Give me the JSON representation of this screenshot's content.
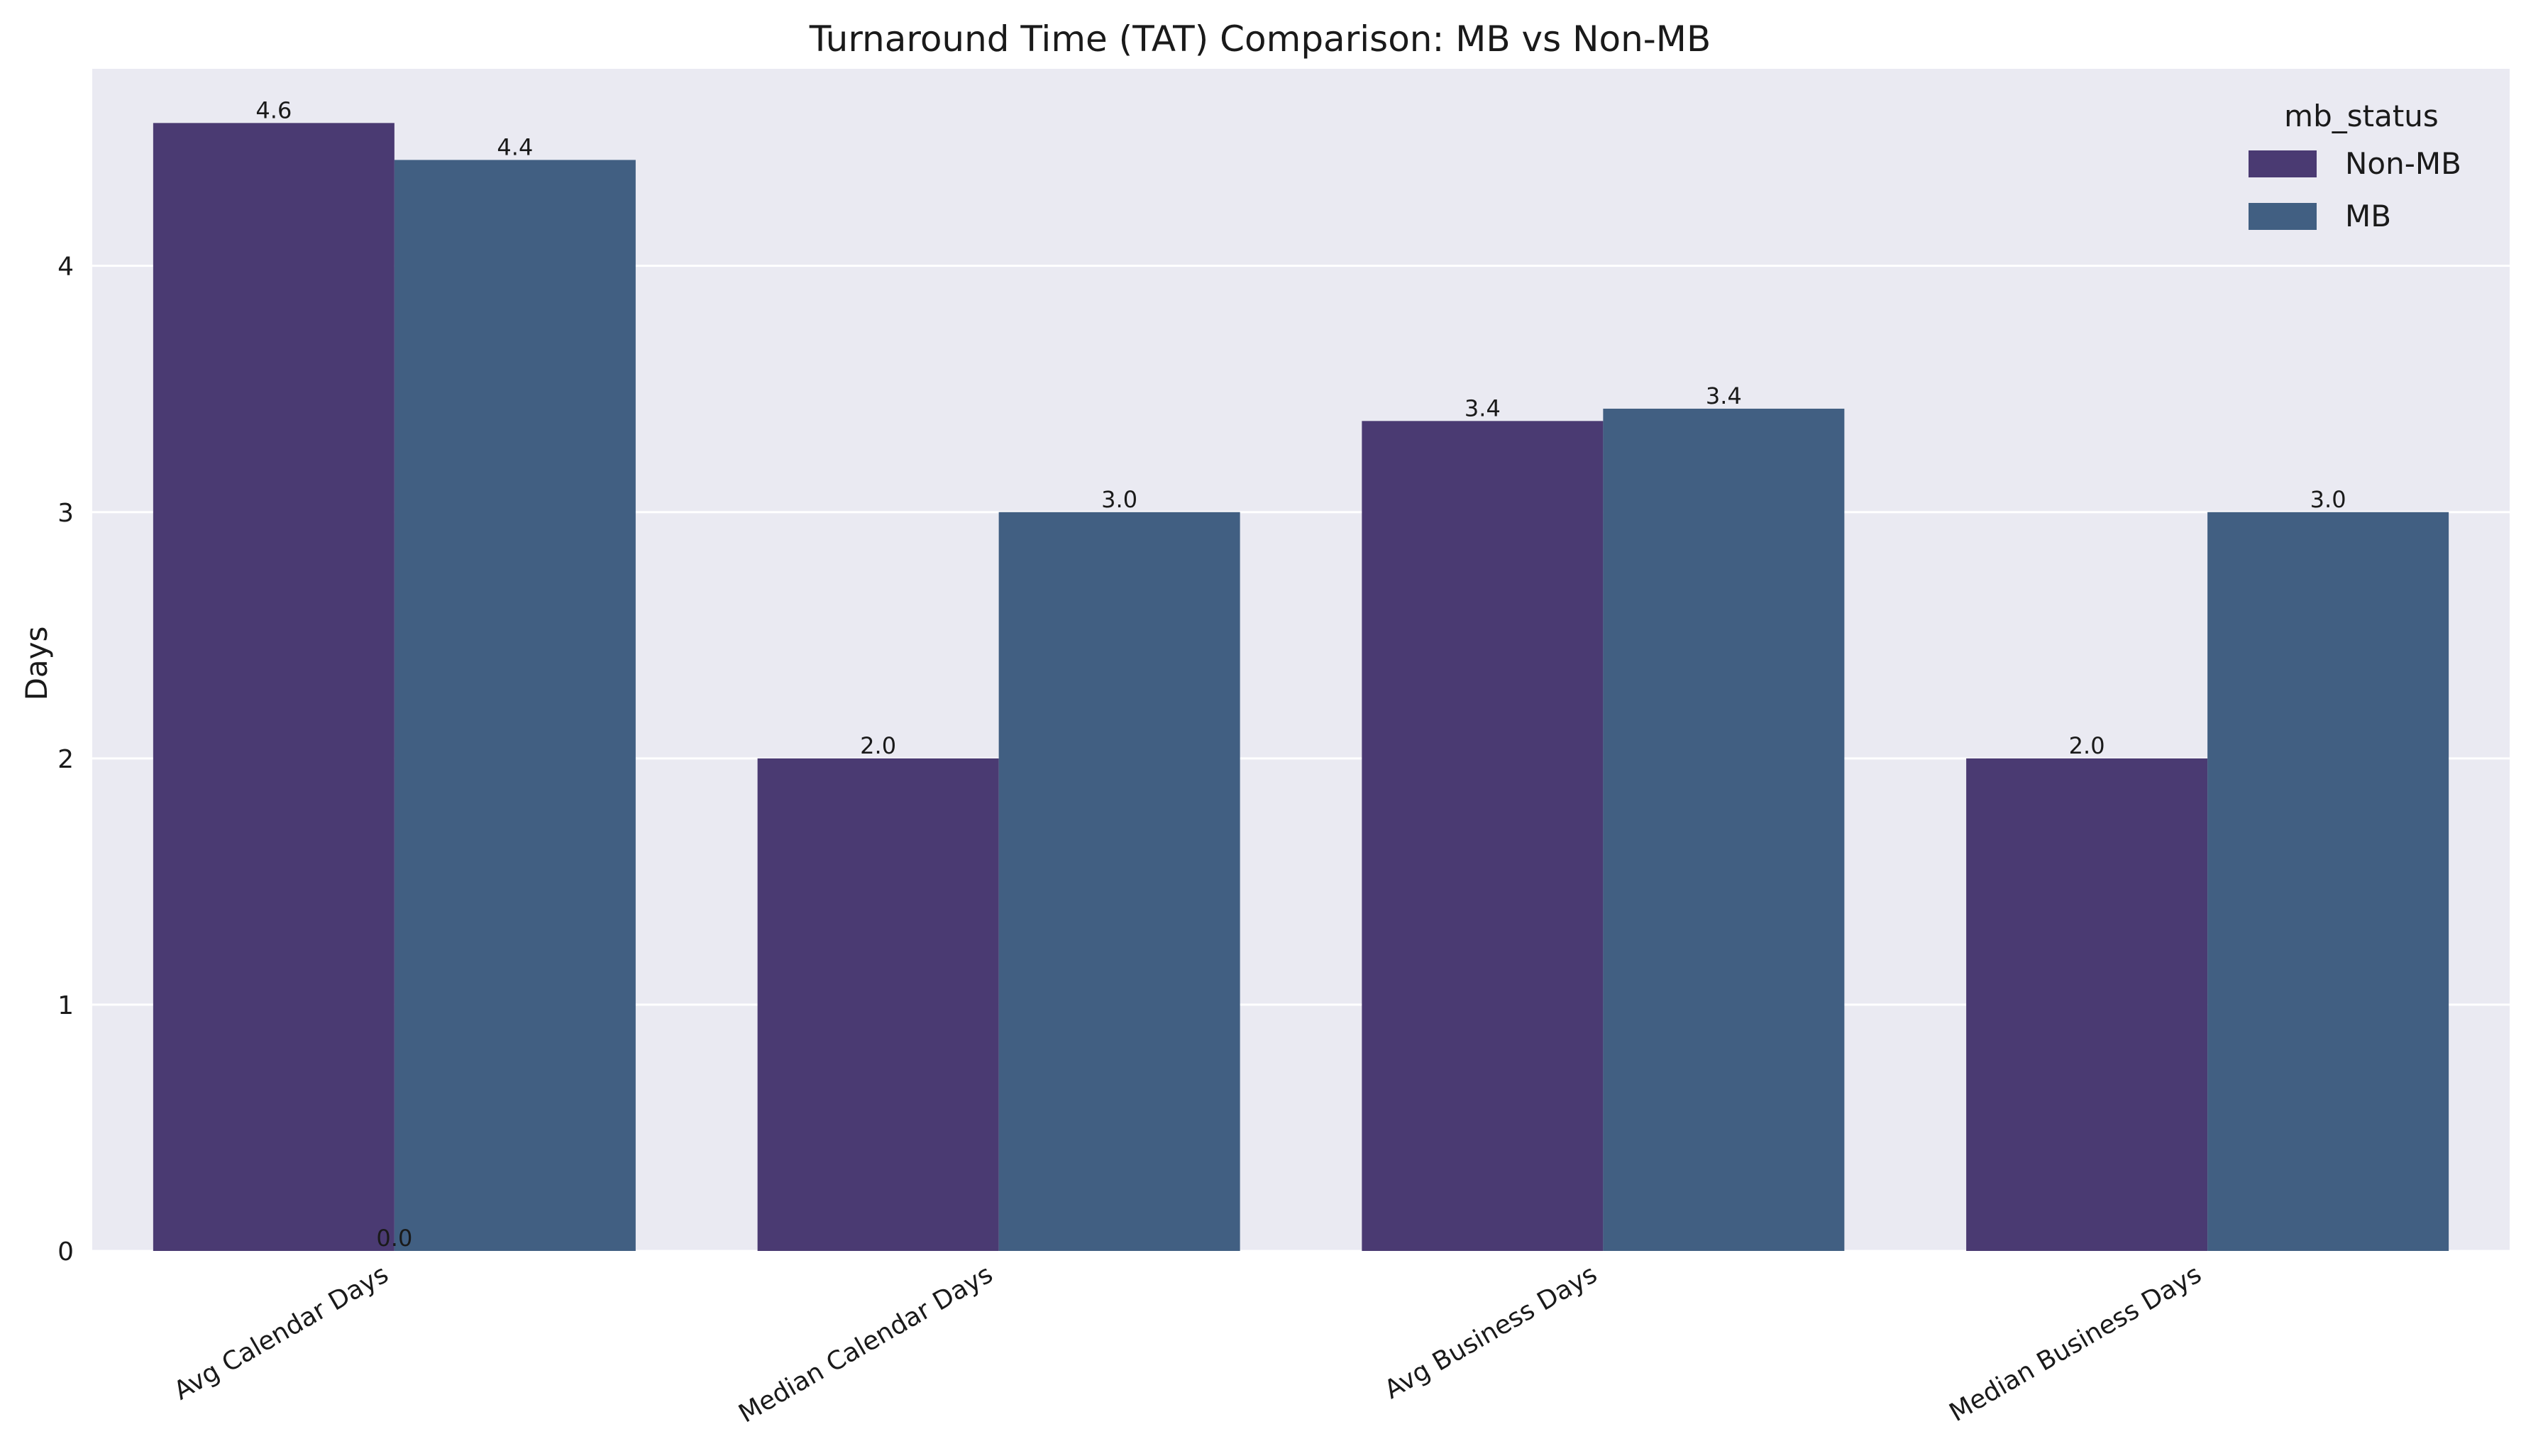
{
  "chart_data": {
    "type": "bar",
    "title": "Turnaround Time (TAT) Comparison: MB vs Non-MB",
    "xlabel": "",
    "ylabel": "Days",
    "categories": [
      "Avg Calendar Days",
      "Median Calendar Days",
      "Avg Business Days",
      "Median Business Days"
    ],
    "series": [
      {
        "name": "Non-MB",
        "values": [
          4.58,
          2.0,
          3.37,
          2.0
        ],
        "labels": [
          "4.6",
          "2.0",
          "3.4",
          "2.0"
        ]
      },
      {
        "name": "MB",
        "values": [
          4.43,
          3.0,
          3.42,
          3.0
        ],
        "labels": [
          "4.4",
          "3.0",
          "3.4",
          "3.0"
        ]
      }
    ],
    "extra_annotation": "0.0",
    "yticks": [
      0,
      1,
      2,
      3,
      4
    ],
    "ytick_labels": [
      "0",
      "1",
      "2",
      "3",
      "4"
    ],
    "ylim": [
      0,
      4.8
    ],
    "grid": true,
    "legend": {
      "title": "mb_status",
      "position": "top-right"
    },
    "colors": {
      "Non-MB": "#4a3a72",
      "MB": "#415f82",
      "plot_background": "#eaeaf2",
      "grid": "#ffffff"
    }
  }
}
